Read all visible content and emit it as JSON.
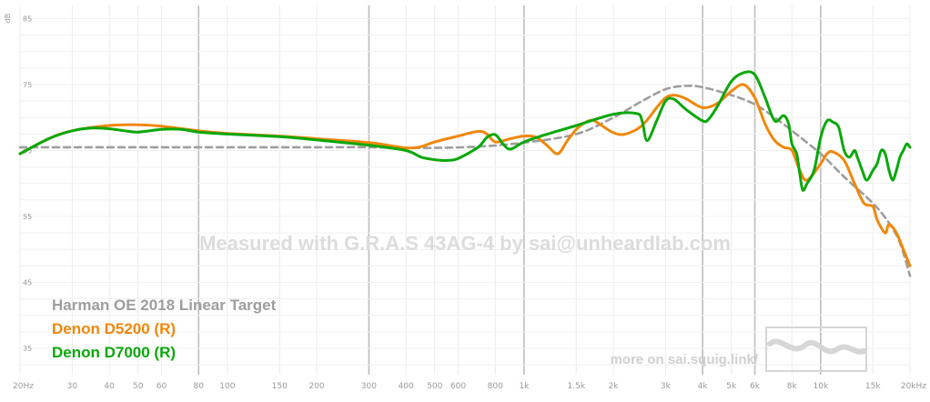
{
  "chart_data": {
    "type": "line",
    "xscale": "log",
    "xlim": [
      20,
      20000
    ],
    "ylim": [
      31,
      87
    ],
    "ylabel": "dB",
    "yticks": [
      35,
      45,
      55,
      65,
      75,
      85
    ],
    "xticks": [
      {
        "v": 20,
        "label": "20Hz",
        "major": false
      },
      {
        "v": 30,
        "label": "30",
        "major": false
      },
      {
        "v": 40,
        "label": "40",
        "major": false
      },
      {
        "v": 50,
        "label": "50",
        "major": false
      },
      {
        "v": 60,
        "label": "60",
        "major": false
      },
      {
        "v": 80,
        "label": "80",
        "major": true
      },
      {
        "v": 100,
        "label": "100",
        "major": false
      },
      {
        "v": 150,
        "label": "150",
        "major": false
      },
      {
        "v": 200,
        "label": "200",
        "major": false
      },
      {
        "v": 300,
        "label": "300",
        "major": true
      },
      {
        "v": 400,
        "label": "400",
        "major": false
      },
      {
        "v": 500,
        "label": "500",
        "major": false
      },
      {
        "v": 600,
        "label": "600",
        "major": false
      },
      {
        "v": 800,
        "label": "800",
        "major": false
      },
      {
        "v": 1000,
        "label": "1k",
        "major": true
      },
      {
        "v": 1500,
        "label": "1.5k",
        "major": false
      },
      {
        "v": 2000,
        "label": "2k",
        "major": false
      },
      {
        "v": 3000,
        "label": "3k",
        "major": false
      },
      {
        "v": 4000,
        "label": "4k",
        "major": true
      },
      {
        "v": 5000,
        "label": "5k",
        "major": false
      },
      {
        "v": 6000,
        "label": "6k",
        "major": true
      },
      {
        "v": 8000,
        "label": "8k",
        "major": false
      },
      {
        "v": 10000,
        "label": "10k",
        "major": true
      },
      {
        "v": 15000,
        "label": "15k",
        "major": false
      },
      {
        "v": 20000,
        "label": "20kHz",
        "major": false
      }
    ],
    "watermark": "Measured with G.R.A.S 43AG-4 by sai@unheardlab.com",
    "credit": "more on sai.squig.link/",
    "series": [
      {
        "name": "Harman OE 2018 Linear Target",
        "color": "#9e9e9e",
        "dashed": true,
        "points": [
          [
            20,
            65.5
          ],
          [
            30,
            65.5
          ],
          [
            50,
            65.5
          ],
          [
            100,
            65.5
          ],
          [
            200,
            65.5
          ],
          [
            300,
            65.5
          ],
          [
            400,
            65.4
          ],
          [
            500,
            65.4
          ],
          [
            700,
            65.6
          ],
          [
            1000,
            66.2
          ],
          [
            1500,
            67.5
          ],
          [
            2000,
            70
          ],
          [
            2500,
            72.5
          ],
          [
            3000,
            74.3
          ],
          [
            3500,
            74.8
          ],
          [
            4000,
            74.6
          ],
          [
            5000,
            73.4
          ],
          [
            6000,
            72
          ],
          [
            7000,
            70
          ],
          [
            8000,
            68
          ],
          [
            10000,
            64.5
          ],
          [
            12000,
            61
          ],
          [
            15000,
            57
          ],
          [
            17000,
            54
          ],
          [
            18500,
            51
          ],
          [
            20000,
            46
          ]
        ]
      },
      {
        "name": "Denon D5200 (R)",
        "color": "#f0870a",
        "dashed": false,
        "points": [
          [
            20,
            64.5
          ],
          [
            25,
            66.8
          ],
          [
            30,
            68
          ],
          [
            40,
            68.8
          ],
          [
            50,
            68.9
          ],
          [
            60,
            68.7
          ],
          [
            80,
            68
          ],
          [
            100,
            67.6
          ],
          [
            150,
            67.2
          ],
          [
            200,
            66.8
          ],
          [
            300,
            66.2
          ],
          [
            400,
            65.4
          ],
          [
            450,
            65.6
          ],
          [
            500,
            66.3
          ],
          [
            600,
            67.2
          ],
          [
            700,
            67.9
          ],
          [
            750,
            67.5
          ],
          [
            800,
            66.3
          ],
          [
            900,
            66.8
          ],
          [
            1000,
            67.2
          ],
          [
            1100,
            67
          ],
          [
            1200,
            65.7
          ],
          [
            1300,
            64.5
          ],
          [
            1400,
            66.5
          ],
          [
            1500,
            68.2
          ],
          [
            1600,
            69.2
          ],
          [
            1700,
            69.6
          ],
          [
            1800,
            69
          ],
          [
            2000,
            67.7
          ],
          [
            2200,
            67.5
          ],
          [
            2500,
            68.8
          ],
          [
            2800,
            71.5
          ],
          [
            3000,
            73
          ],
          [
            3200,
            73.4
          ],
          [
            3500,
            72.9
          ],
          [
            4000,
            71.5
          ],
          [
            4500,
            72.2
          ],
          [
            5000,
            74
          ],
          [
            5500,
            75
          ],
          [
            6000,
            73
          ],
          [
            6500,
            69
          ],
          [
            7000,
            66.5
          ],
          [
            7500,
            65.5
          ],
          [
            8000,
            65
          ],
          [
            8500,
            62
          ],
          [
            9000,
            60.5
          ],
          [
            10000,
            63
          ],
          [
            10500,
            64.5
          ],
          [
            11000,
            64.8
          ],
          [
            12000,
            63.5
          ],
          [
            13000,
            60
          ],
          [
            14000,
            57
          ],
          [
            15000,
            56.5
          ],
          [
            15500,
            54.5
          ],
          [
            16500,
            52.5
          ],
          [
            17000,
            53.8
          ],
          [
            18000,
            52.5
          ],
          [
            19000,
            50
          ],
          [
            20000,
            47.5
          ]
        ]
      },
      {
        "name": "Denon D7000 (R)",
        "color": "#0aa80a",
        "dashed": false,
        "points": [
          [
            20,
            64.5
          ],
          [
            25,
            66.8
          ],
          [
            30,
            68
          ],
          [
            35,
            68.4
          ],
          [
            40,
            68.3
          ],
          [
            45,
            68
          ],
          [
            50,
            67.8
          ],
          [
            60,
            68.2
          ],
          [
            70,
            68.2
          ],
          [
            80,
            67.8
          ],
          [
            100,
            67.5
          ],
          [
            150,
            67.1
          ],
          [
            200,
            66.6
          ],
          [
            300,
            65.8
          ],
          [
            400,
            65
          ],
          [
            450,
            64
          ],
          [
            500,
            63.6
          ],
          [
            550,
            63.5
          ],
          [
            600,
            63.8
          ],
          [
            700,
            65.5
          ],
          [
            750,
            67
          ],
          [
            800,
            67.4
          ],
          [
            850,
            66
          ],
          [
            900,
            65.2
          ],
          [
            1000,
            66.3
          ],
          [
            1200,
            67.5
          ],
          [
            1500,
            68.8
          ],
          [
            2000,
            70.5
          ],
          [
            2400,
            70.6
          ],
          [
            2500,
            69.5
          ],
          [
            2600,
            66.5
          ],
          [
            2800,
            69.5
          ],
          [
            3000,
            72.5
          ],
          [
            3200,
            72.8
          ],
          [
            3500,
            71.3
          ],
          [
            4000,
            69.5
          ],
          [
            4200,
            69.8
          ],
          [
            4500,
            71.8
          ],
          [
            5000,
            75.5
          ],
          [
            5500,
            76.8
          ],
          [
            6000,
            76.5
          ],
          [
            6500,
            73
          ],
          [
            7000,
            69.5
          ],
          [
            7500,
            70.3
          ],
          [
            7800,
            69
          ],
          [
            8000,
            66
          ],
          [
            8300,
            64.5
          ],
          [
            8500,
            61.5
          ],
          [
            8700,
            59
          ],
          [
            9000,
            60
          ],
          [
            9500,
            62
          ],
          [
            10000,
            67
          ],
          [
            10500,
            69.5
          ],
          [
            11000,
            69.3
          ],
          [
            11500,
            68.5
          ],
          [
            12000,
            65
          ],
          [
            12500,
            64
          ],
          [
            13000,
            65
          ],
          [
            13300,
            64
          ],
          [
            13800,
            62
          ],
          [
            14300,
            60.5
          ],
          [
            15000,
            62
          ],
          [
            15500,
            63
          ],
          [
            16000,
            65
          ],
          [
            16500,
            64.5
          ],
          [
            17000,
            62
          ],
          [
            17500,
            60.5
          ],
          [
            18000,
            62
          ],
          [
            18500,
            64
          ],
          [
            19000,
            65
          ],
          [
            19500,
            66
          ],
          [
            20000,
            65.5
          ]
        ]
      }
    ]
  }
}
